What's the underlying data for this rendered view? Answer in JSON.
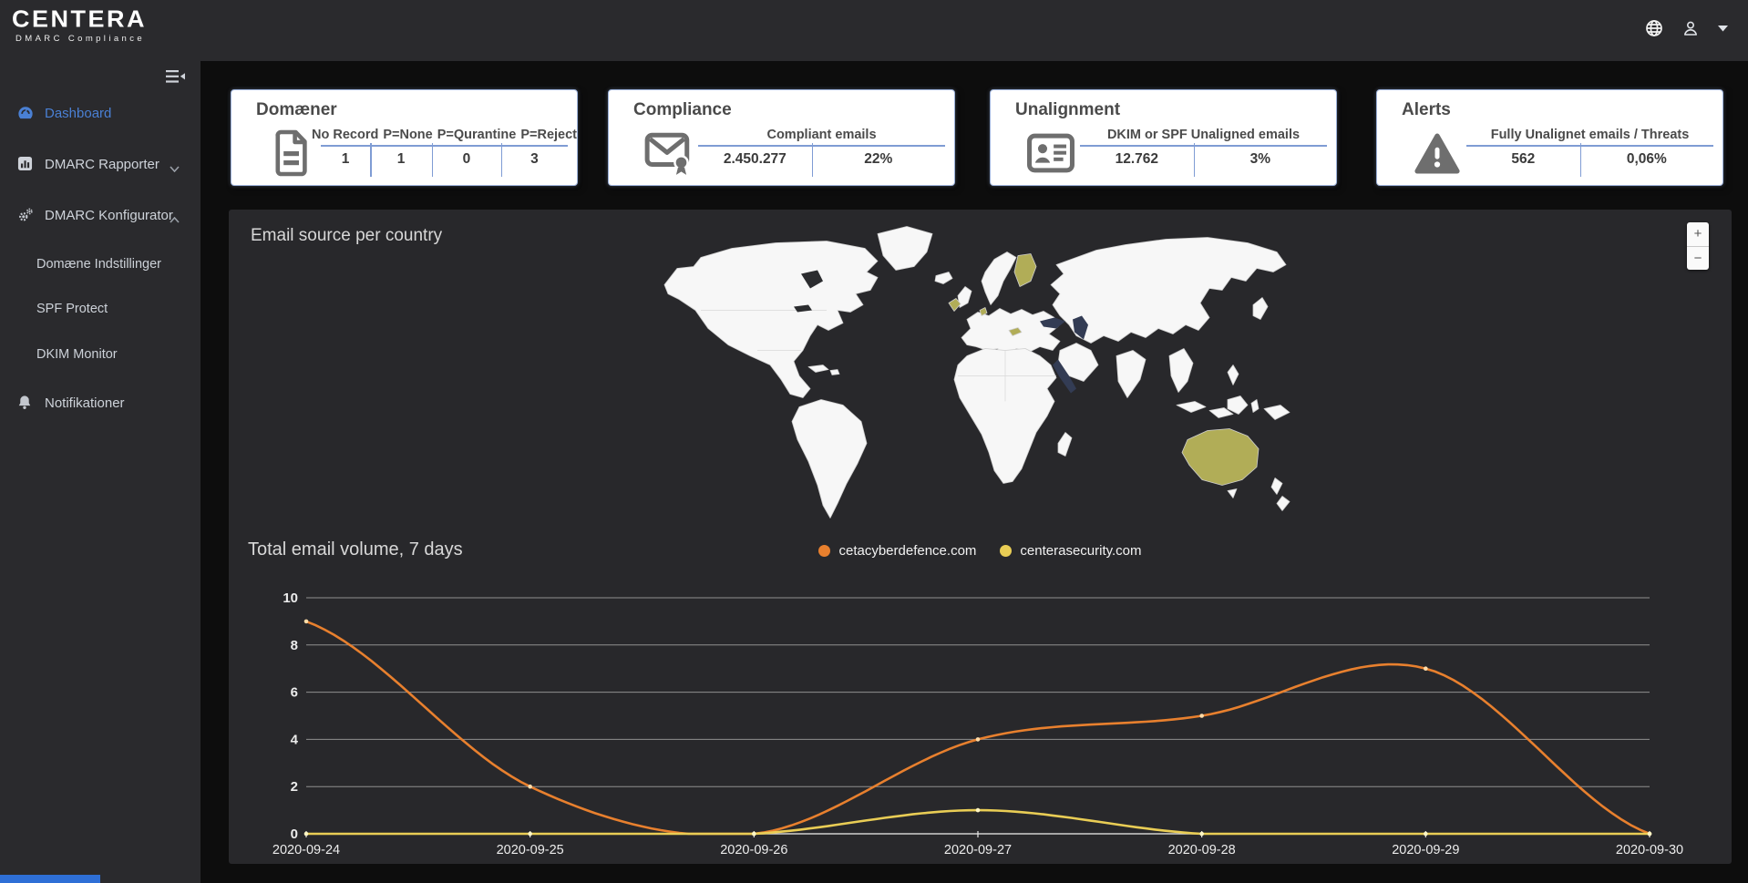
{
  "brand": {
    "name": "CENTERA",
    "tagline": "DMARC Compliance"
  },
  "topbar": {
    "icons": [
      "globe-icon",
      "user-icon",
      "caret-down-icon"
    ]
  },
  "sidebar": {
    "items": [
      {
        "label": "Dashboard",
        "icon": "gauge",
        "active": true
      },
      {
        "label": "DMARC Rapporter",
        "icon": "bar-chart",
        "chevron": "down"
      },
      {
        "label": "DMARC Konfigurator",
        "icon": "gears",
        "chevron": "up",
        "expanded": true,
        "children": [
          "Domæne Indstillinger",
          "SPF Protect",
          "DKIM Monitor"
        ]
      },
      {
        "label": "Notifikationer",
        "icon": "bell"
      }
    ]
  },
  "cards": [
    {
      "title": "Domæner",
      "icon": "document",
      "columns": [
        "No Record",
        "P=None",
        "P=Qurantine",
        "P=Reject"
      ],
      "values": [
        "1",
        "1",
        "0",
        "3"
      ]
    },
    {
      "title": "Compliance",
      "icon": "envelope-certified",
      "header": "Compliant emails",
      "values": [
        "2.450.277",
        "22%"
      ]
    },
    {
      "title": "Unalignment",
      "icon": "id-card",
      "header": "DKIM or SPF Unaligned emails",
      "values": [
        "12.762",
        "3%"
      ]
    },
    {
      "title": "Alerts",
      "icon": "warning-triangle",
      "header": "Fully Unalignet emails / Threats",
      "values": [
        "562",
        "0,06%"
      ]
    }
  ],
  "map": {
    "title": "Email source per country",
    "zoom_in_label": "+",
    "zoom_out_label": "−",
    "land_color": "#f7f7f7",
    "highlight_color": "#b1ad57",
    "highlighted_countries": [
      "Finland",
      "Ireland",
      "Netherlands",
      "Austria",
      "Australia"
    ]
  },
  "chart_data": {
    "type": "line",
    "title": "Total email volume, 7 days",
    "x": [
      "2020-09-24",
      "2020-09-25",
      "2020-09-26",
      "2020-09-27",
      "2020-09-28",
      "2020-09-29",
      "2020-09-30"
    ],
    "series": [
      {
        "name": "cetacyberdefence.com",
        "color": "#e8802e",
        "point_color": "#ffdca8",
        "values": [
          9,
          2,
          0,
          4,
          5,
          7,
          0
        ]
      },
      {
        "name": "centerasecurity.com",
        "color": "#e9cd55",
        "point_color": "#fff6c4",
        "values": [
          0,
          0,
          0,
          1,
          0,
          0,
          0
        ]
      }
    ],
    "ylim": [
      0,
      10
    ],
    "yticks": [
      0,
      2,
      4,
      6,
      8,
      10
    ],
    "grid": true,
    "legend_position": "top-center",
    "curve": "smooth"
  },
  "colors": {
    "accent_blue": "#4a80d4",
    "card_border": "#9db2da",
    "card_rule": "#7f9cd4",
    "panel_bg": "#28282b",
    "sidebar_bg": "#2a2a2d",
    "page_bg": "#0d0d0d",
    "bottom_bar_blue": "#2e6fd6"
  }
}
